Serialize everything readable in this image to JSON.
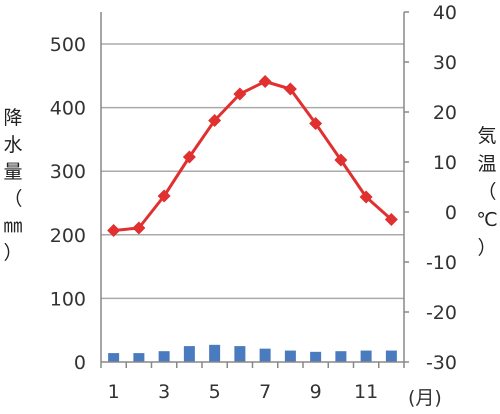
{
  "chart_data": {
    "type": "bar+line",
    "x": [
      1,
      2,
      3,
      4,
      5,
      6,
      7,
      8,
      9,
      10,
      11,
      12
    ],
    "x_tick_labels": [
      "1",
      "3",
      "5",
      "7",
      "9",
      "11"
    ],
    "x_unit_label": "(月)",
    "left_axis": {
      "label": [
        "降",
        "水",
        "量",
        "（",
        "㎜",
        "）"
      ],
      "ylim": [
        0,
        500
      ],
      "ticks": [
        "0",
        "100",
        "200",
        "300",
        "400",
        "500"
      ]
    },
    "right_axis": {
      "label": [
        "気",
        "温",
        "（",
        "℃",
        "）"
      ],
      "ylim": [
        -30,
        40
      ],
      "ticks": [
        "-30",
        "-20",
        "-10",
        "0",
        "10",
        "20",
        "30",
        "40"
      ]
    },
    "series": [
      {
        "type": "bar",
        "axis": "left",
        "values": [
          14,
          14,
          17,
          25,
          27,
          25,
          21,
          18,
          16,
          17,
          18,
          18
        ]
      },
      {
        "type": "line",
        "axis": "right",
        "values": [
          -3.7,
          -3.2,
          3.2,
          11,
          18.3,
          23.6,
          26.1,
          24.6,
          17.7,
          10.4,
          3,
          -1.5
        ]
      }
    ],
    "grid": true,
    "colors": {
      "bar": "#4a7bbf",
      "line": "#e03030",
      "marker": "#e03030",
      "grid": "#aaaaaa",
      "axis": "#888888"
    }
  }
}
